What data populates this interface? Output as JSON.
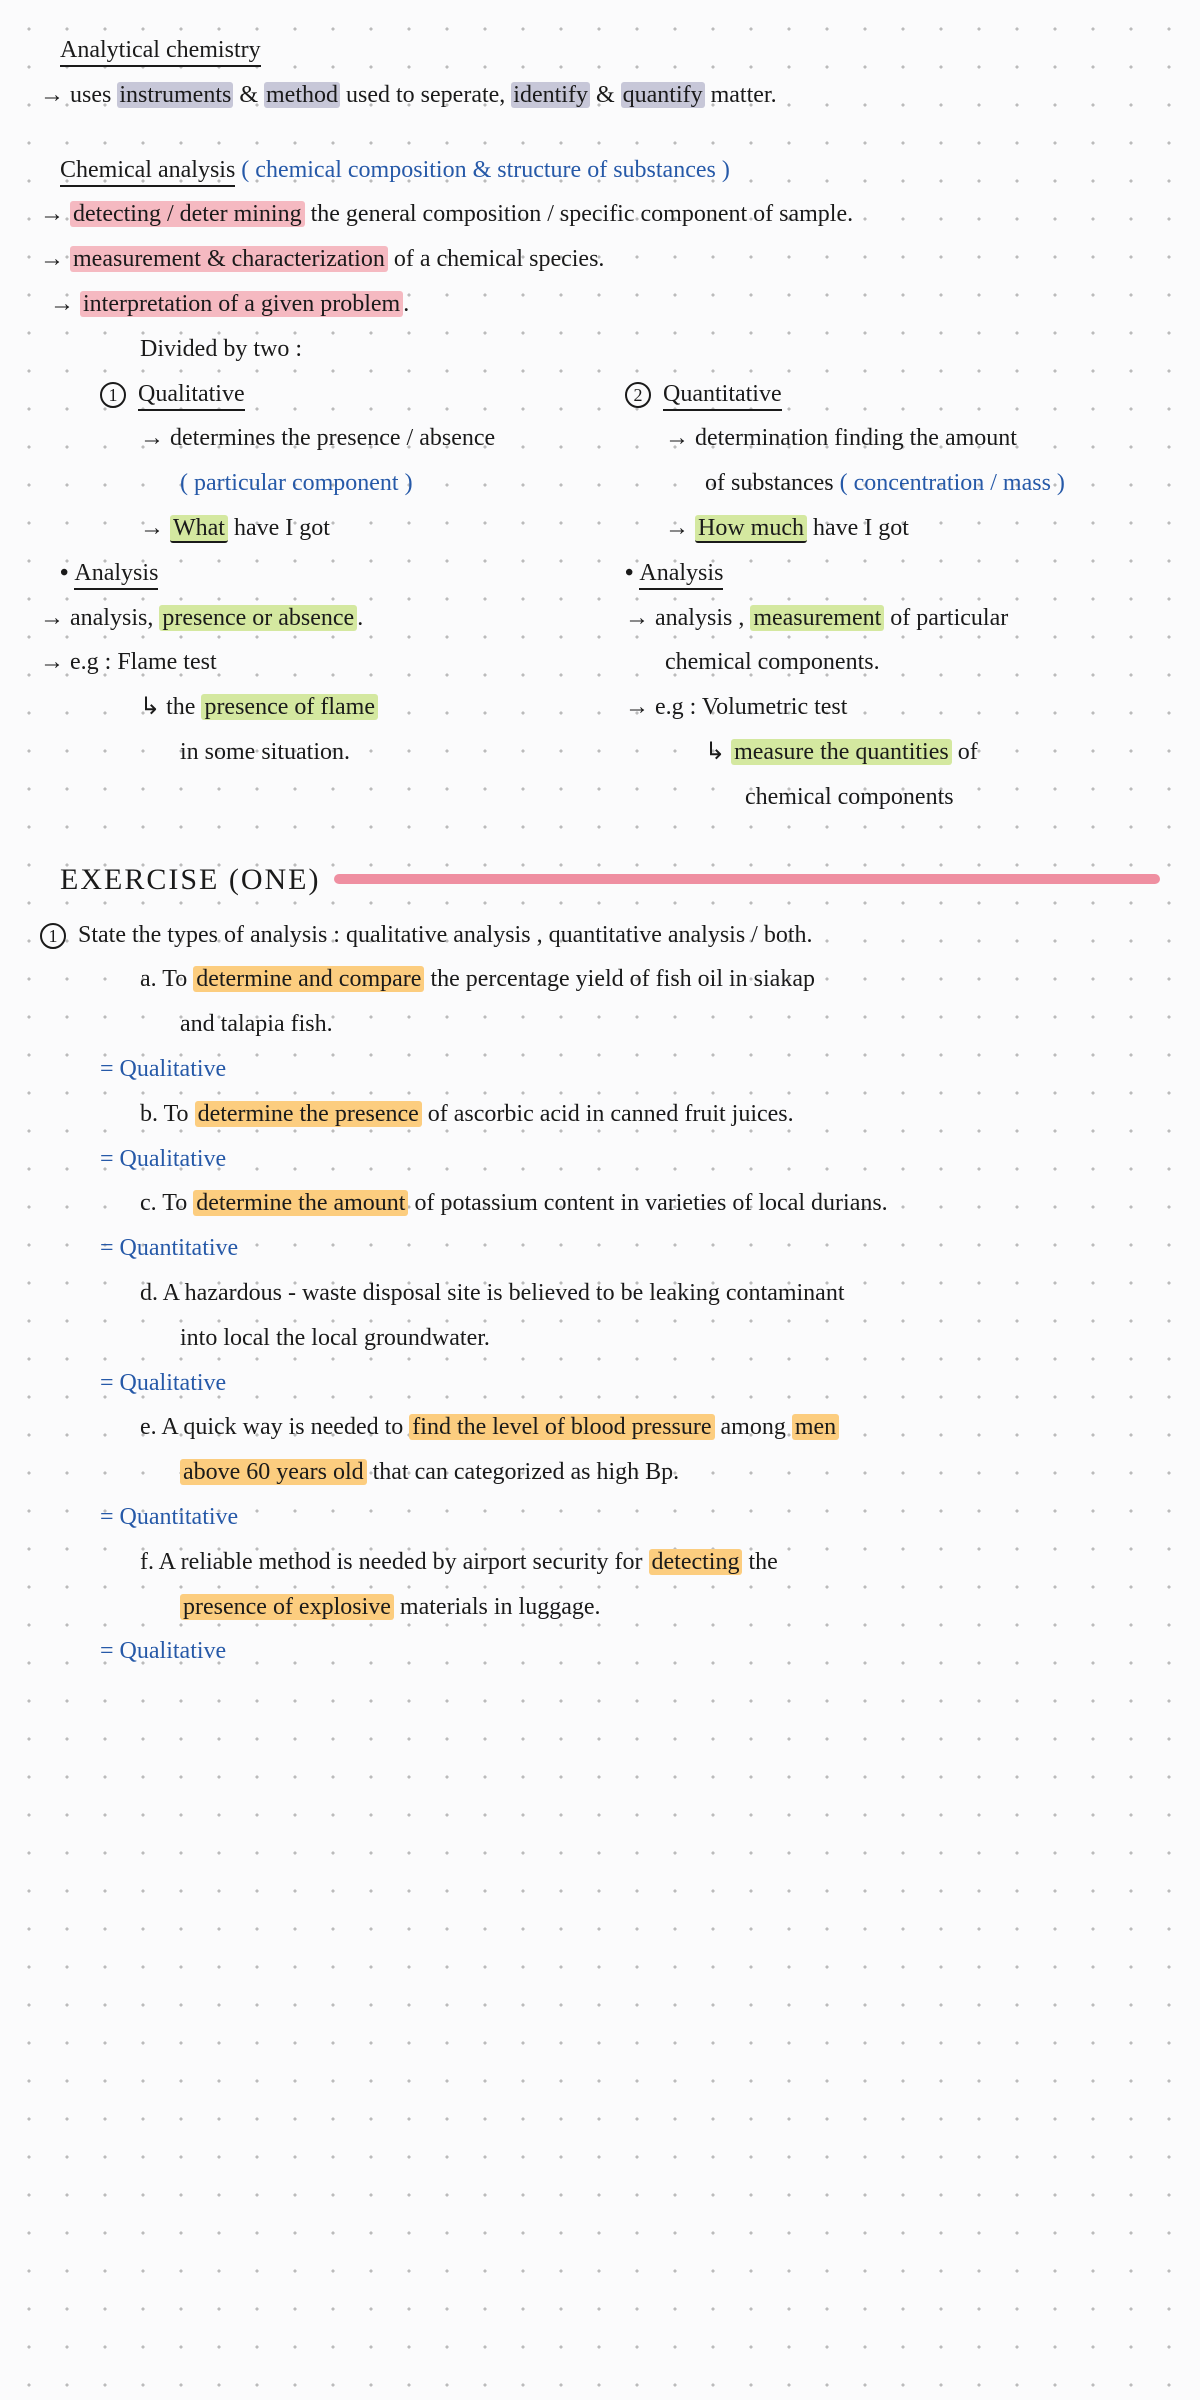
{
  "title1": "Analytical chemistry",
  "t1_l1_a": "uses  ",
  "t1_l1_b": "instruments",
  "t1_l1_c": "  &  ",
  "t1_l1_d": "method",
  "t1_l1_e": "  used  to  seperate, ",
  "t1_l1_f": "identify",
  "t1_l1_g": "  &  ",
  "t1_l1_h": "quantify",
  "t1_l1_i": "  matter.",
  "title2": "Chemical analysis",
  "t2_sub": " ( chemical composition  &  structure  of  substances )",
  "t2_l1_a": "detecting / deter mining",
  "t2_l1_b": "  the  general  composition / specific  component  of  sample.",
  "t2_l2_a": "measurement  &  characterization",
  "t2_l2_b": "  of  a  chemical  species.",
  "t2_l3_a": "interpretation  of  a  given  problem",
  "t2_l3_b": ".",
  "divided": "Divided  by  two :",
  "qual": {
    "num": "1",
    "title": "Qualitative",
    "l1a": "determines  the  presence / absence",
    "l1b": "( particular  component )",
    "l2a": "What",
    "l2b": "  have  I  got",
    "ana": "Analysis",
    "ana1a": "analysis, ",
    "ana1b": "presence  or  absence",
    "ana1c": ".",
    "eg": "e.g :  Flame  test",
    "eg2a": "the  ",
    "eg2b": "presence  of  flame",
    "eg3": "in  some  situation."
  },
  "quant": {
    "num": "2",
    "title": "Quantitative",
    "l1a": "determination  finding  the  amount",
    "l1b": "of  substances  ",
    "l1c": "( concentration / mass )",
    "l2a": "How  much",
    "l2b": "  have  I  got",
    "ana": "Analysis",
    "ana1a": "analysis , ",
    "ana1b": "measurement",
    "ana1c": "  of  particular",
    "ana2": "chemical  components.",
    "eg": "e.g :  Volumetric  test",
    "eg2a": "measure  the  quantities",
    "eg2b": "  of",
    "eg3": "chemical  components"
  },
  "ex_title": "EXERCISE (ONE)",
  "ex_num": "1",
  "ex_q": "State  the  types  of  analysis : qualitative  analysis ,  quantitative  analysis  /  both.",
  "a": {
    "label": "a.  To  ",
    "hl": "determine  and  compare",
    "rest": "  the  percentage  yield  of  fish  oil  in  siakap",
    "rest2": "and  talapia  fish.",
    "ans": "Qualitative"
  },
  "b": {
    "label": "b.  To  ",
    "hl": "determine  the  presence",
    "rest": "  of  ascorbic  acid  in  canned  fruit  juices.",
    "ans": "Qualitative"
  },
  "c": {
    "label": "c.  To  ",
    "hl": "determine  the  amount",
    "rest": "  of  potassium  content  in  varieties  of  local  durians.",
    "ans": "Quantitative"
  },
  "d": {
    "label": "d.  A  hazardous - waste  disposal  site  is  believed  to  be  leaking  contaminant",
    "rest2": "into  local  the  local  groundwater.",
    "ans": "Qualitative"
  },
  "e": {
    "label": "e.   A  quick  way  is  needed  to  ",
    "hl": "find  the  level  of  blood  pressure",
    "rest": "  among  ",
    "hl2": "men",
    "hl3": "above  60  years  old",
    "rest2": " that  can  categorized  as  high  Bp.",
    "ans": "Quantitative"
  },
  "f": {
    "label": "f.  A  reliable  method  is  needed  by  airport  security  for  ",
    "hl": "detecting",
    "rest": "  the",
    "hl2": "presence  of  explosive",
    "rest2": "  materials  in  luggage.",
    "ans": "Qualitative"
  }
}
